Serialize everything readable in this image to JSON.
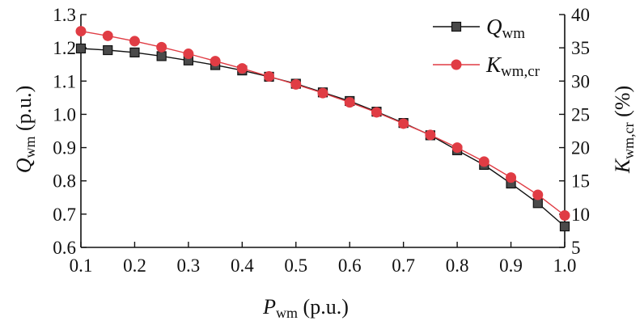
{
  "chart_data": {
    "type": "line",
    "x": [
      0.1,
      0.15,
      0.2,
      0.25,
      0.3,
      0.35,
      0.4,
      0.45,
      0.5,
      0.55,
      0.6,
      0.65,
      0.7,
      0.75,
      0.8,
      0.85,
      0.9,
      0.95,
      1.0
    ],
    "xlim": [
      0.1,
      1.0
    ],
    "x_ticks": [
      "0.1",
      "0.2",
      "0.3",
      "0.4",
      "0.5",
      "0.6",
      "0.7",
      "0.8",
      "0.9",
      "1.0"
    ],
    "xlabel": {
      "main": "P",
      "sub": "wm",
      "unit": " (p.u.)"
    },
    "y_left": {
      "lim": [
        0.6,
        1.3
      ],
      "ticks": [
        "0.6",
        "0.7",
        "0.8",
        "0.9",
        "1.0",
        "1.1",
        "1.2",
        "1.3"
      ],
      "label": {
        "main": "Q",
        "sub": "wm",
        "unit": " (p.u.)"
      }
    },
    "y_right": {
      "lim": [
        5,
        40
      ],
      "ticks": [
        "5",
        "10",
        "15",
        "20",
        "25",
        "30",
        "35",
        "40"
      ],
      "label": {
        "main": "K",
        "sub": "wm,cr",
        "unit": " (%)"
      }
    },
    "grid": false,
    "legend": "top-right",
    "series": [
      {
        "name_main": "Q",
        "name_sub": "wm",
        "axis": "left",
        "marker": "square",
        "color": "#111111",
        "marker_fill": "#4a4a4a",
        "values": [
          1.198,
          1.193,
          1.186,
          1.175,
          1.162,
          1.148,
          1.132,
          1.113,
          1.092,
          1.066,
          1.04,
          1.008,
          0.974,
          0.937,
          0.892,
          0.848,
          0.792,
          0.733,
          0.663
        ]
      },
      {
        "name_main": "K",
        "name_sub": "wm,cr",
        "axis": "right",
        "marker": "circle",
        "color": "#e03c44",
        "marker_fill": "#e03c44",
        "values": [
          37.5,
          36.8,
          36.0,
          35.1,
          34.1,
          33.0,
          31.9,
          30.7,
          29.5,
          28.2,
          26.8,
          25.3,
          23.6,
          21.9,
          20.0,
          17.9,
          15.5,
          12.9,
          9.8
        ]
      }
    ]
  }
}
